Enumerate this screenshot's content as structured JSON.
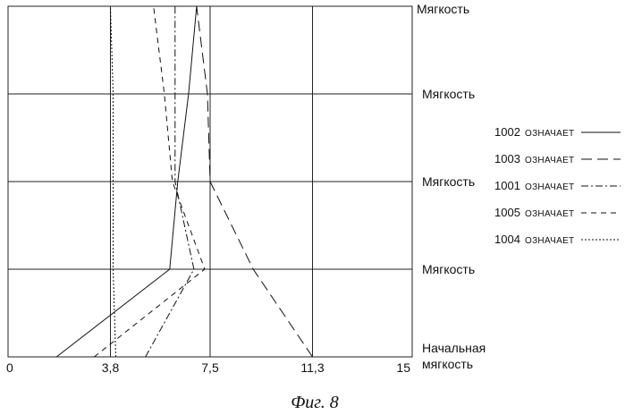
{
  "chart_data": {
    "type": "line",
    "title": "",
    "x_ticks": [
      {
        "value": 0,
        "label": "0"
      },
      {
        "value": 3.8,
        "label": "3,8"
      },
      {
        "value": 7.5,
        "label": "7,5"
      },
      {
        "value": 11.3,
        "label": "11,3"
      },
      {
        "value": 15,
        "label": "15"
      }
    ],
    "xlim": [
      0,
      15
    ],
    "grid": true,
    "y_levels": [
      {
        "value": 0,
        "label": [
          "Начальная",
          "мягкость"
        ]
      },
      {
        "value": 1,
        "label": [
          "Мягкость"
        ]
      },
      {
        "value": 2,
        "label": [
          "Мягкость"
        ]
      },
      {
        "value": 3,
        "label": [
          "Мягкость"
        ]
      },
      {
        "value": 4,
        "label": [
          "Мягкость"
        ]
      }
    ],
    "ylim": [
      0,
      4
    ],
    "legend_position": "right",
    "series": [
      {
        "name": "1002",
        "legend_word": "ОЗНАЧАЕТ",
        "dash": "none",
        "x": [
          1.8,
          6.0,
          6.3,
          6.7,
          7.0
        ],
        "y": [
          0,
          1,
          2,
          3,
          4
        ]
      },
      {
        "name": "1003",
        "legend_word": "ОЗНАЧАЕТ",
        "dash": "12,6",
        "x": [
          11.3,
          9.1,
          7.5,
          7.4,
          7.0
        ],
        "y": [
          0,
          1,
          2,
          3,
          4
        ]
      },
      {
        "name": "1001",
        "legend_word": "ОЗНАЧАЕТ",
        "dash": "8,3,2,3",
        "x": [
          5.1,
          6.9,
          6.2,
          6.2,
          6.2
        ],
        "y": [
          0,
          1,
          2,
          3,
          4
        ]
      },
      {
        "name": "1005",
        "legend_word": "ОЗНАЧАЕТ",
        "dash": "6,5",
        "x": [
          3.2,
          7.3,
          6.1,
          5.8,
          5.4
        ],
        "y": [
          0,
          1,
          2,
          3,
          4
        ]
      },
      {
        "name": "1004",
        "legend_word": "ОЗНАЧАЕТ",
        "dash": "2,2",
        "x": [
          4.0,
          3.9,
          3.9,
          3.9,
          3.8
        ],
        "y": [
          0,
          1,
          2,
          3,
          4
        ]
      }
    ]
  },
  "caption": "Фиг. 8"
}
